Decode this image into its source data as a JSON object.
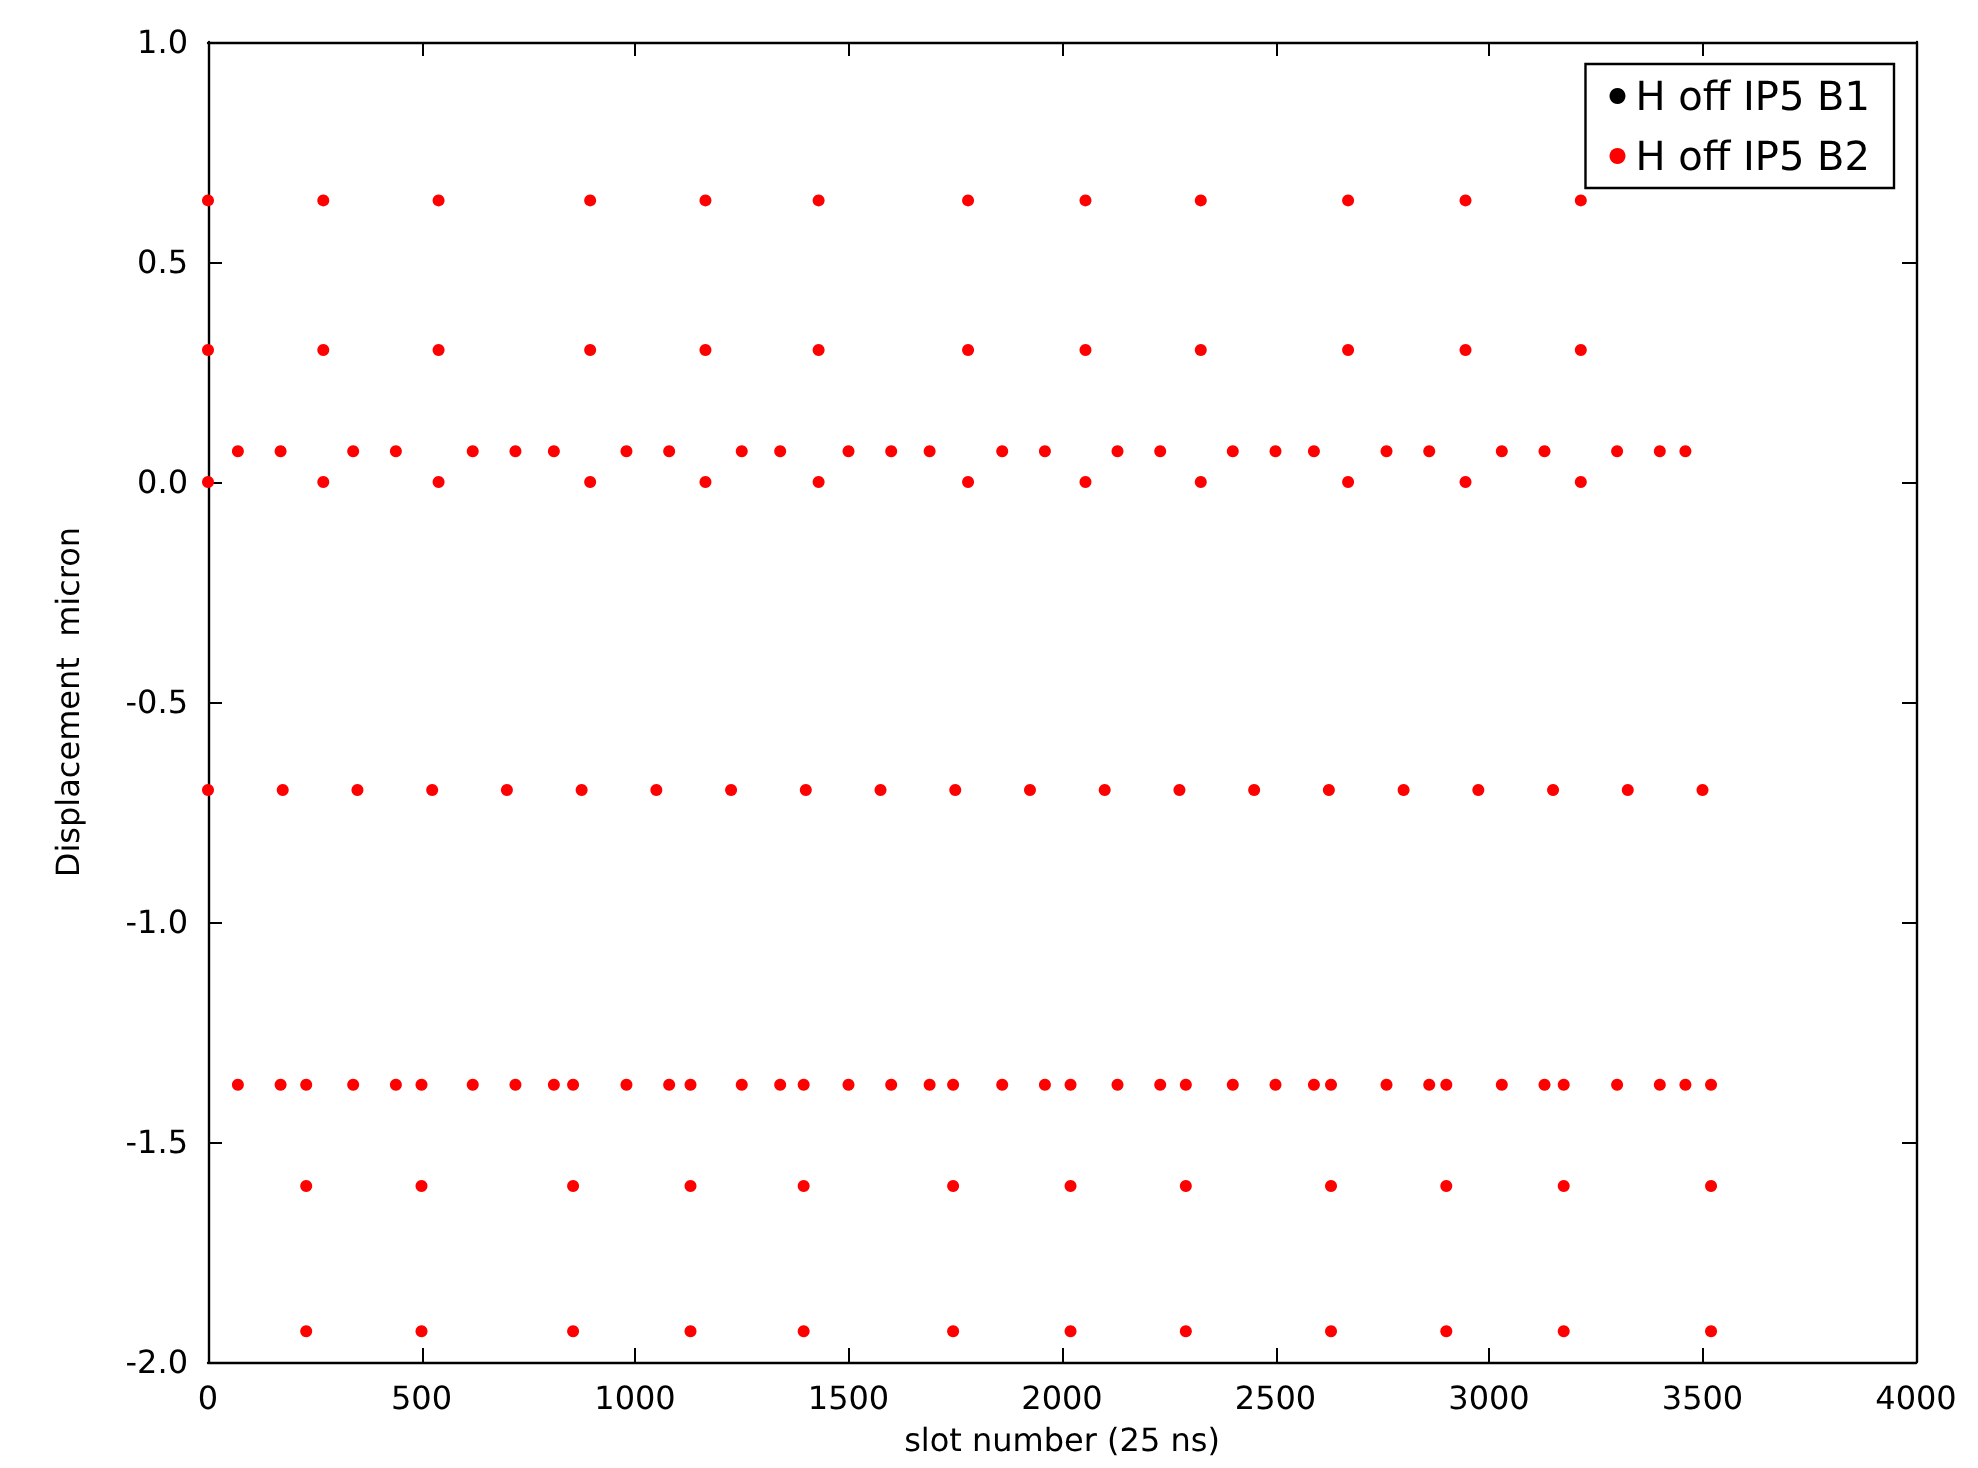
{
  "chart_data": {
    "type": "scatter",
    "xlabel": "slot number (25 ns)",
    "ylabel": "Displacement  micron",
    "xlim": [
      0,
      4000
    ],
    "xticks": [
      0,
      500,
      1000,
      1500,
      2000,
      2500,
      3000,
      3500,
      4000
    ],
    "ylim": [
      -2,
      1
    ],
    "yticks": [
      {
        "value": -2,
        "label": "-2.0"
      },
      {
        "value": -1.5,
        "label": "-1.5"
      },
      {
        "value": -1,
        "label": "-1.0"
      },
      {
        "value": -0.5,
        "label": "-0.5"
      },
      {
        "value": 0,
        "label": "0.0"
      },
      {
        "value": 0.5,
        "label": "0.5"
      },
      {
        "value": 1,
        "label": "1.0"
      }
    ],
    "grid": false,
    "legend": "top right",
    "marker": "circle",
    "series": [
      {
        "name": "H off IP5 B1",
        "color": "#000000"
      },
      {
        "name": "H off IP5 B2",
        "color": "#ff0000",
        "x": [
          0,
          0,
          0,
          270,
          270,
          270,
          540,
          540,
          540,
          895,
          895,
          895,
          1165,
          1165,
          1165,
          1430,
          1430,
          1430,
          1780,
          1780,
          1780,
          2055,
          2055,
          2055,
          2325,
          2325,
          2325,
          2670,
          2670,
          2670,
          2945,
          2945,
          2945,
          3215,
          3215,
          3215,
          230,
          230,
          230,
          500,
          500,
          500,
          855,
          855,
          855,
          1130,
          1130,
          1130,
          1395,
          1395,
          1395,
          1745,
          1745,
          1745,
          2020,
          2020,
          2020,
          2290,
          2290,
          2290,
          2630,
          2630,
          2630,
          2900,
          2900,
          2900,
          3175,
          3175,
          3175,
          3520,
          3520,
          3520,
          70,
          70,
          170,
          170,
          340,
          340,
          440,
          440,
          620,
          620,
          720,
          720,
          810,
          810,
          980,
          980,
          1080,
          1080,
          1250,
          1250,
          1340,
          1340,
          1500,
          1500,
          1600,
          1600,
          1690,
          1690,
          1860,
          1860,
          1960,
          1960,
          2130,
          2130,
          2230,
          2230,
          2400,
          2400,
          2500,
          2500,
          2590,
          2590,
          2760,
          2760,
          2860,
          2860,
          3030,
          3030,
          3130,
          3130,
          3300,
          3300,
          3400,
          3400,
          3460,
          3460,
          0,
          175,
          350,
          525,
          700,
          875,
          1050,
          1225,
          1400,
          1575,
          1750,
          1925,
          2100,
          2275,
          2450,
          2625,
          2800,
          2975,
          3150,
          3325,
          3500
        ],
        "values": [
          0.64,
          0.3,
          0.0,
          0.64,
          0.3,
          0.0,
          0.64,
          0.3,
          0.0,
          0.64,
          0.3,
          0.0,
          0.64,
          0.3,
          0.0,
          0.64,
          0.3,
          0.0,
          0.64,
          0.3,
          0.0,
          0.64,
          0.3,
          0.0,
          0.64,
          0.3,
          0.0,
          0.64,
          0.3,
          0.0,
          0.64,
          0.3,
          0.0,
          0.64,
          0.3,
          0.0,
          -1.37,
          -1.6,
          -1.93,
          -1.37,
          -1.6,
          -1.93,
          -1.37,
          -1.6,
          -1.93,
          -1.37,
          -1.6,
          -1.93,
          -1.37,
          -1.6,
          -1.93,
          -1.37,
          -1.6,
          -1.93,
          -1.37,
          -1.6,
          -1.93,
          -1.37,
          -1.6,
          -1.93,
          -1.37,
          -1.6,
          -1.93,
          -1.37,
          -1.6,
          -1.93,
          -1.37,
          -1.6,
          -1.93,
          -1.37,
          -1.6,
          -1.93,
          0.07,
          -1.37,
          0.07,
          -1.37,
          0.07,
          -1.37,
          0.07,
          -1.37,
          0.07,
          -1.37,
          0.07,
          -1.37,
          0.07,
          -1.37,
          0.07,
          -1.37,
          0.07,
          -1.37,
          0.07,
          -1.37,
          0.07,
          -1.37,
          0.07,
          -1.37,
          0.07,
          -1.37,
          0.07,
          -1.37,
          0.07,
          -1.37,
          0.07,
          -1.37,
          0.07,
          -1.37,
          0.07,
          -1.37,
          0.07,
          -1.37,
          0.07,
          -1.37,
          0.07,
          -1.37,
          0.07,
          -1.37,
          0.07,
          -1.37,
          0.07,
          -1.37,
          0.07,
          -1.37,
          0.07,
          -1.37,
          0.07,
          -1.37,
          0.07,
          -1.37,
          -0.7,
          -0.7,
          -0.7,
          -0.7,
          -0.7,
          -0.7,
          -0.7,
          -0.7,
          -0.7,
          -0.7,
          -0.7,
          -0.7,
          -0.7,
          -0.7,
          -0.7,
          -0.7,
          -0.7,
          -0.7,
          -0.7,
          -0.7,
          -0.7
        ]
      }
    ]
  }
}
